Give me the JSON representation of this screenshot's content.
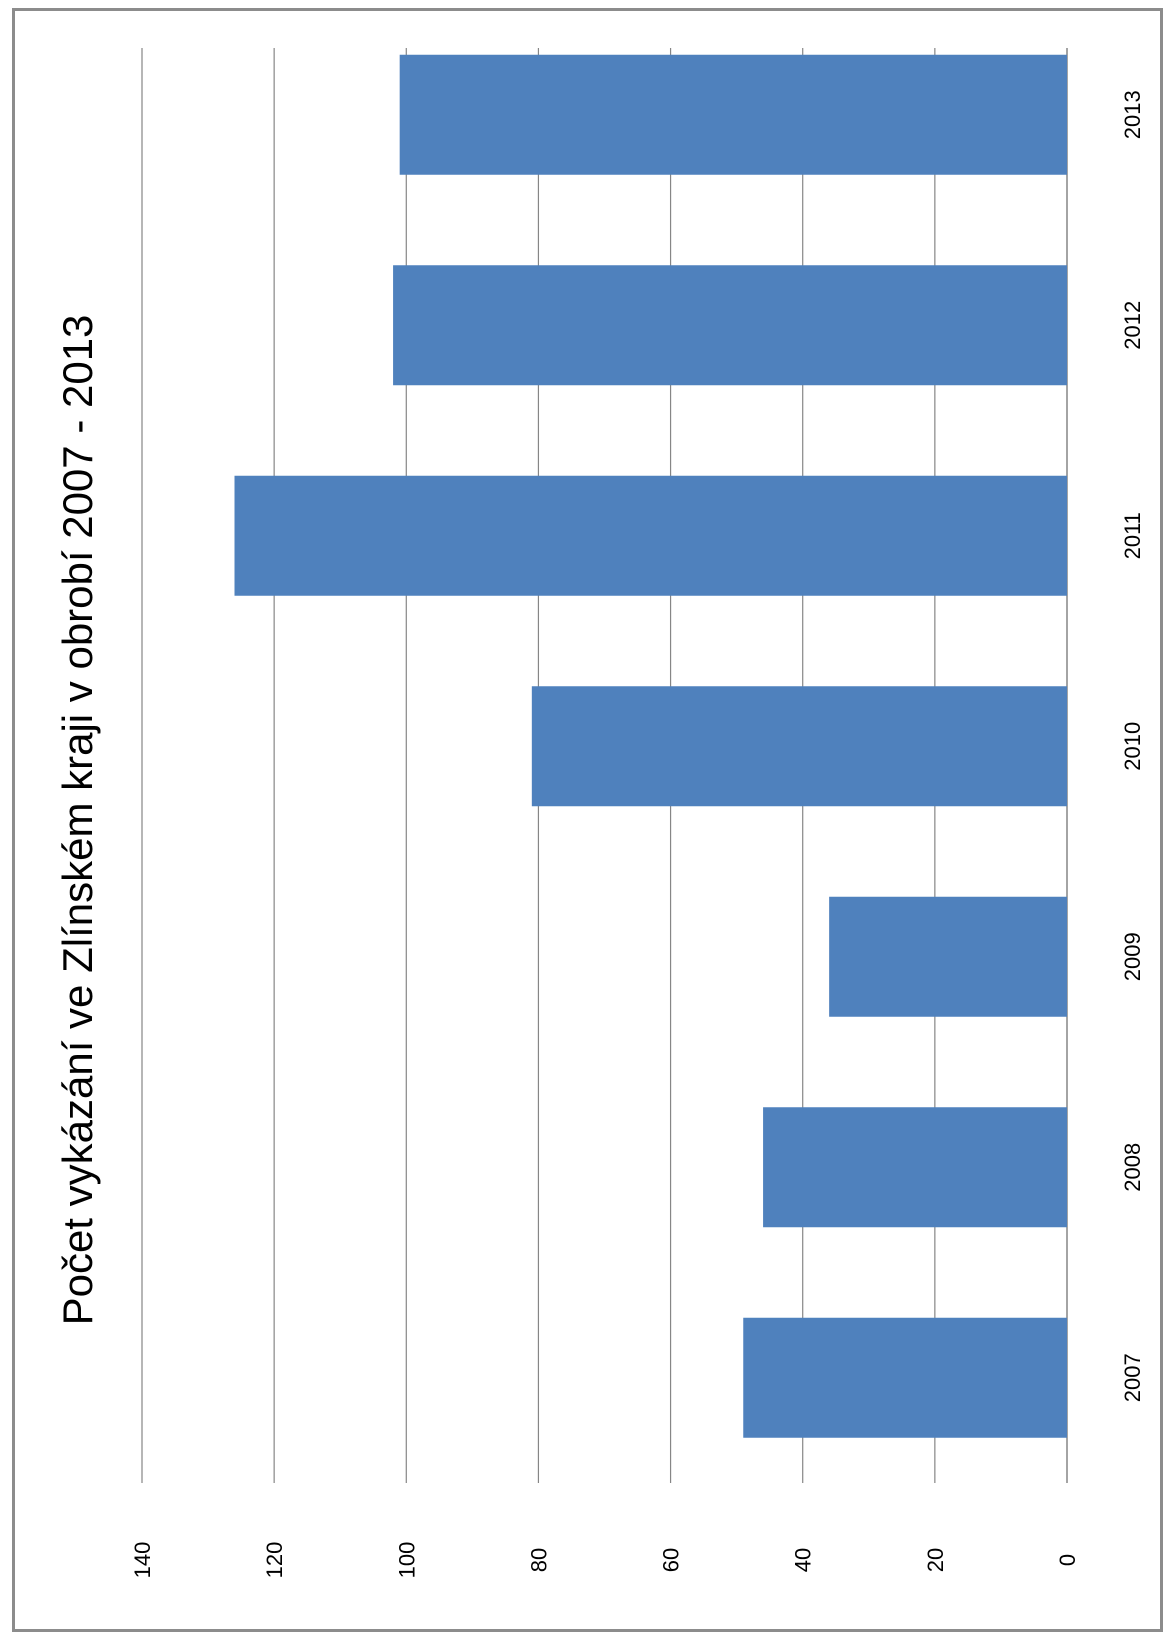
{
  "chart_data": {
    "type": "bar",
    "orientation": "rotated-90-clockwise",
    "title": "Počet vykázání ve Zlínském kraji v obrobí 2007 - 2013",
    "categories": [
      "2007",
      "2008",
      "2009",
      "2010",
      "2011",
      "2012",
      "2013"
    ],
    "values": [
      49,
      46,
      36,
      81,
      126,
      102,
      101
    ],
    "ylim": [
      0,
      140
    ],
    "yticks": [
      "0",
      "20",
      "40",
      "60",
      "80",
      "100",
      "120",
      "140"
    ],
    "grid": true,
    "legend": "none",
    "colors": {
      "bar": "#4f81bd",
      "grid": "#868686",
      "text": "#000000",
      "frame": "#8c8c8c"
    }
  }
}
